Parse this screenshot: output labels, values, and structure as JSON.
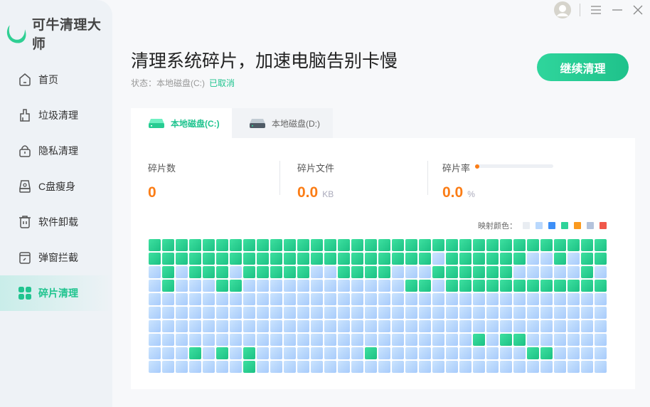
{
  "app": {
    "name": "可牛清理大师"
  },
  "sidebar": {
    "items": [
      {
        "label": "首页",
        "icon": "home-icon"
      },
      {
        "label": "垃圾清理",
        "icon": "broom-icon"
      },
      {
        "label": "隐私清理",
        "icon": "lock-icon"
      },
      {
        "label": "C盘瘦身",
        "icon": "disk-icon"
      },
      {
        "label": "软件卸载",
        "icon": "trash-icon"
      },
      {
        "label": "弹窗拦截",
        "icon": "popup-icon"
      },
      {
        "label": "碎片清理",
        "icon": "grid-icon",
        "active": true
      }
    ]
  },
  "header": {
    "title": "清理系统碎片，加速电脑告别卡慢",
    "status_label": "状态：本地磁盘(C:)",
    "status_value": "已取消",
    "button": "继续清理"
  },
  "tabs": [
    {
      "label": "本地磁盘(C:)",
      "active": true
    },
    {
      "label": "本地磁盘(D:)",
      "active": false
    }
  ],
  "stats": {
    "count": {
      "label": "碎片数",
      "value": "0"
    },
    "files": {
      "label": "碎片文件",
      "value": "0.0",
      "unit": "KB"
    },
    "rate": {
      "label": "碎片率",
      "value": "0.0",
      "unit": "%",
      "progress": 0
    }
  },
  "legend": {
    "label": "映射颜色：",
    "colors": [
      "#e9edf2",
      "#b9d8fd",
      "#3d8ff7",
      "#2ed39a",
      "#fb9a1e",
      "#b4c3dc",
      "#f0584a"
    ]
  },
  "map": {
    "colors": {
      "0": "light-blue",
      "1": "green"
    },
    "rows": [
      "1111111111111111111111111111111111",
      "1111111111111111111110111111001011",
      "0101110111110011110001111110000010",
      "0100011000000000000110111111111111",
      "0000000000000000000000000000000000",
      "0000000000000000000000000000000000",
      "0000000000000000000000000000000000",
      "0000000000000000000000001011000000",
      "0001010100000000100000000000110000",
      "0000000100000000000000000000000000"
    ]
  }
}
